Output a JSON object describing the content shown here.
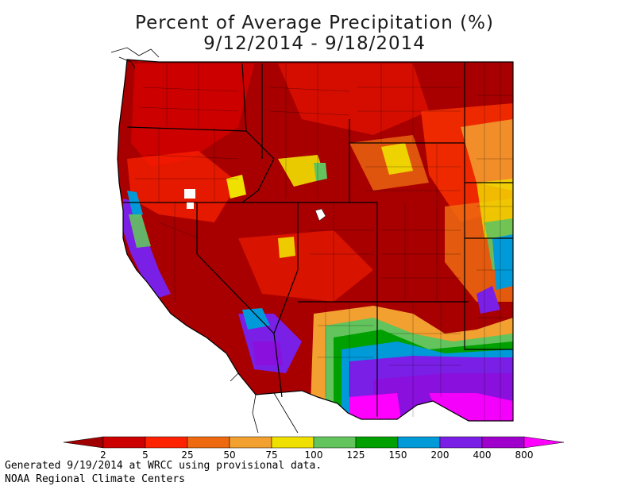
{
  "title": {
    "line1": "Percent of Average Precipitation (%)",
    "line2": "9/12/2014 - 9/18/2014"
  },
  "legend": {
    "breaks": [
      "2",
      "5",
      "25",
      "50",
      "75",
      "100",
      "125",
      "150",
      "200",
      "400",
      "800"
    ],
    "colors": [
      "#a10000",
      "#cc0000",
      "#ff2200",
      "#ee6a10",
      "#f2a030",
      "#f0e000",
      "#63c35d",
      "#00a000",
      "#009ad8",
      "#7a1fe6",
      "#a000cc",
      "#ff00ff"
    ]
  },
  "footer": {
    "line1": "Generated 9/19/2014 at WRCC using provisional data.",
    "line2": "NOAA Regional Climate Centers"
  },
  "map": {
    "region": "Western United States",
    "background_color": "#a80000"
  }
}
